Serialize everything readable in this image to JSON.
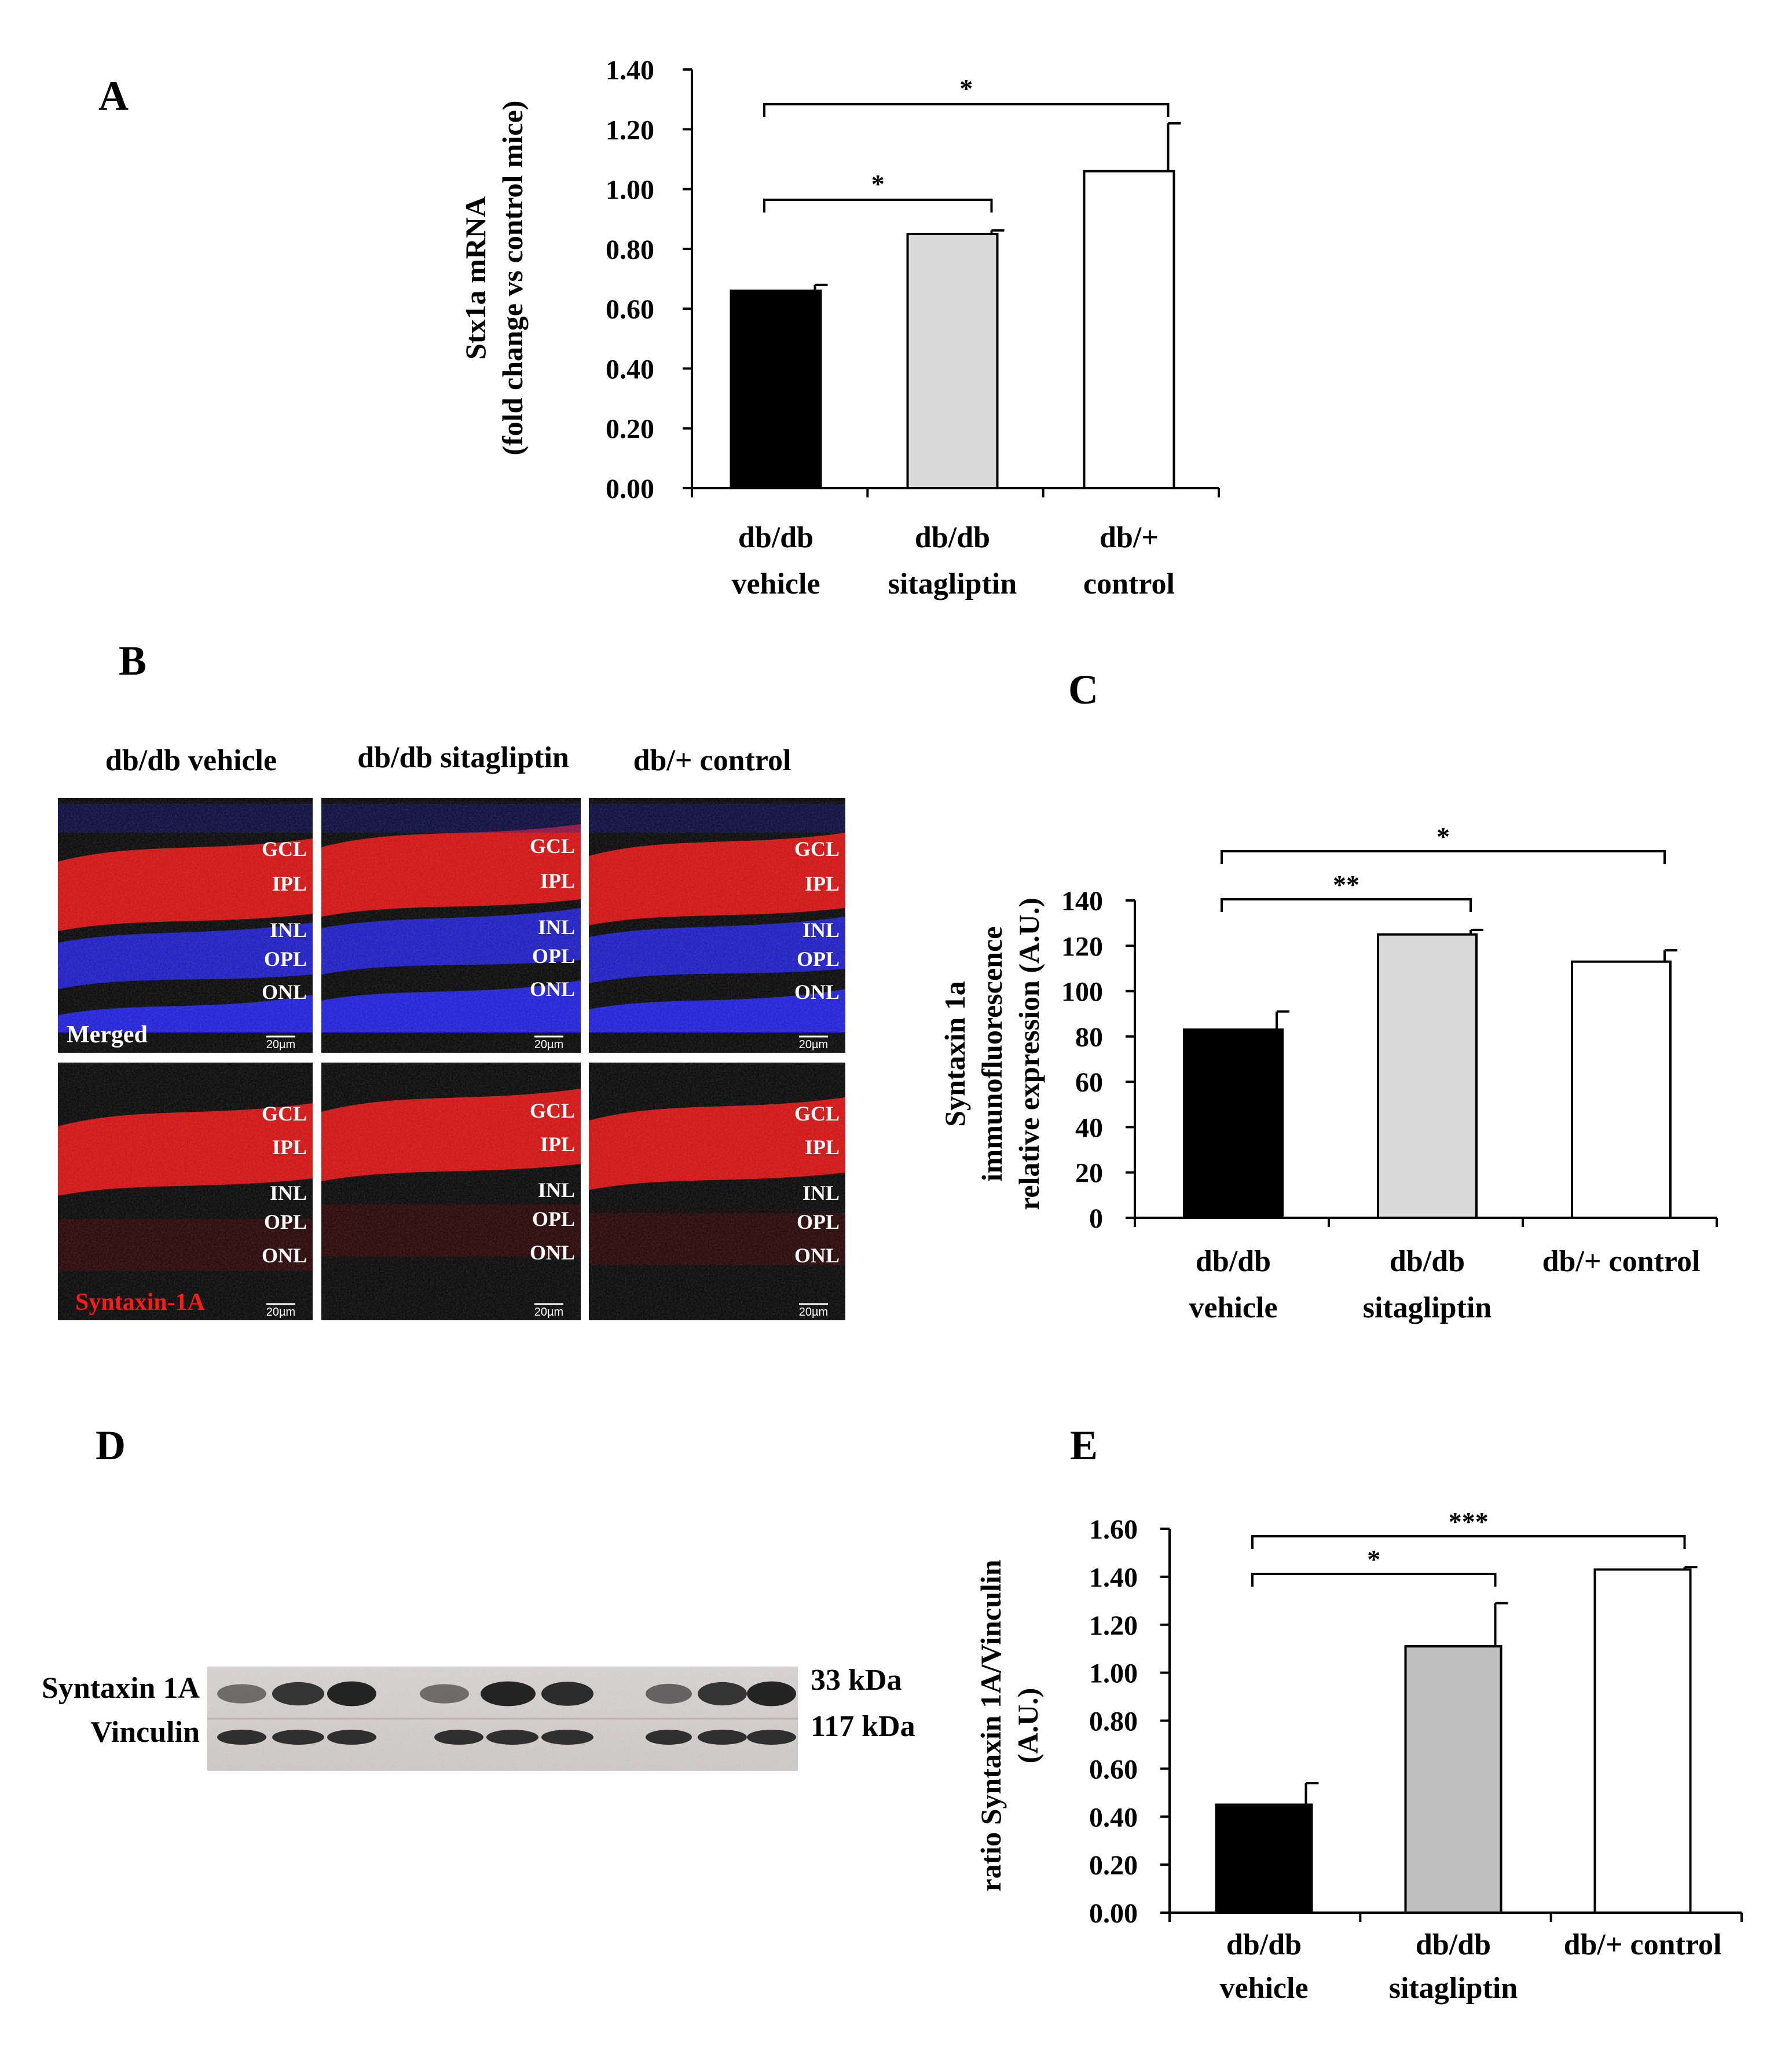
{
  "panels": {
    "A": "A",
    "B": "B",
    "C": "C",
    "D": "D",
    "E": "E"
  },
  "colors": {
    "vehicle": "#000000",
    "sitagliptin_A": "#d9d9d9",
    "sitagliptin_C": "#d9d9d9",
    "sitagliptin_E": "#bfbfbf",
    "control": "#ffffff",
    "microscopy_red": "#e01010",
    "microscopy_blue": "#2020e8"
  },
  "chart_data": [
    {
      "panel": "A",
      "type": "bar",
      "categories": [
        [
          "db/db",
          "vehicle"
        ],
        [
          "db/db",
          "sitagliptin"
        ],
        [
          "db/+",
          "control"
        ]
      ],
      "values": [
        0.66,
        0.85,
        1.06
      ],
      "errors": [
        0.02,
        0.012,
        0.16
      ],
      "ylabel": [
        "Stx1a mRNA",
        "(fold change vs control mice)"
      ],
      "ylim": [
        0,
        1.4
      ],
      "yticks": [
        "0.00",
        "0.20",
        "0.40",
        "0.60",
        "0.80",
        "1.00",
        "1.20",
        "1.40"
      ],
      "tick_values": [
        0,
        0.2,
        0.4,
        0.6,
        0.8,
        1.0,
        1.2,
        1.4
      ],
      "significance": [
        {
          "from": 0,
          "to": 1,
          "label": "*"
        },
        {
          "from": 0,
          "to": 2,
          "label": "*"
        }
      ]
    },
    {
      "panel": "C",
      "type": "bar",
      "categories": [
        [
          "db/db",
          "vehicle"
        ],
        [
          "db/db",
          "sitagliptin"
        ],
        [
          "db/+ control"
        ]
      ],
      "values": [
        83,
        125,
        113
      ],
      "errors": [
        8,
        2,
        5
      ],
      "ylabel": [
        "Syntaxin 1a",
        "immunofluorescence",
        "relative expression  (A.U.)"
      ],
      "ylim": [
        0,
        140
      ],
      "yticks": [
        "0",
        "20",
        "40",
        "60",
        "80",
        "100",
        "120",
        "140"
      ],
      "tick_values": [
        0,
        20,
        40,
        60,
        80,
        100,
        120,
        140
      ],
      "significance": [
        {
          "from": 0,
          "to": 1,
          "label": "**"
        },
        {
          "from": 0,
          "to": 2,
          "label": "*"
        }
      ]
    },
    {
      "panel": "E",
      "type": "bar",
      "categories": [
        [
          "db/db",
          "vehicle"
        ],
        [
          "db/db",
          "sitagliptin"
        ],
        [
          "db/+ control"
        ]
      ],
      "values": [
        0.45,
        1.11,
        1.43
      ],
      "errors": [
        0.09,
        0.18,
        0.01
      ],
      "ylabel": [
        "ratio Syntaxin 1A/Vinculin",
        "(A.U.)"
      ],
      "ylim": [
        0,
        1.6
      ],
      "yticks": [
        "0.00",
        "0.20",
        "0.40",
        "0.60",
        "0.80",
        "1.00",
        "1.20",
        "1.40",
        "1.60"
      ],
      "tick_values": [
        0,
        0.2,
        0.4,
        0.6,
        0.8,
        1.0,
        1.2,
        1.4,
        1.6
      ],
      "significance": [
        {
          "from": 0,
          "to": 1,
          "label": "*"
        },
        {
          "from": 0,
          "to": 2,
          "label": "***"
        }
      ]
    }
  ],
  "microscopy": {
    "columns": [
      "db/db vehicle",
      "db/db sitagliptin",
      "db/+ control"
    ],
    "rows": [
      "Merged",
      "Syntaxin-1A"
    ],
    "layers": [
      "GCL",
      "IPL",
      "INL",
      "OPL",
      "ONL"
    ],
    "scalebar": "20µm"
  },
  "western_blot": {
    "bands": [
      {
        "label": "Syntaxin 1A",
        "size": "33 kDa"
      },
      {
        "label": "Vinculin",
        "size": "117 kDa"
      }
    ]
  }
}
